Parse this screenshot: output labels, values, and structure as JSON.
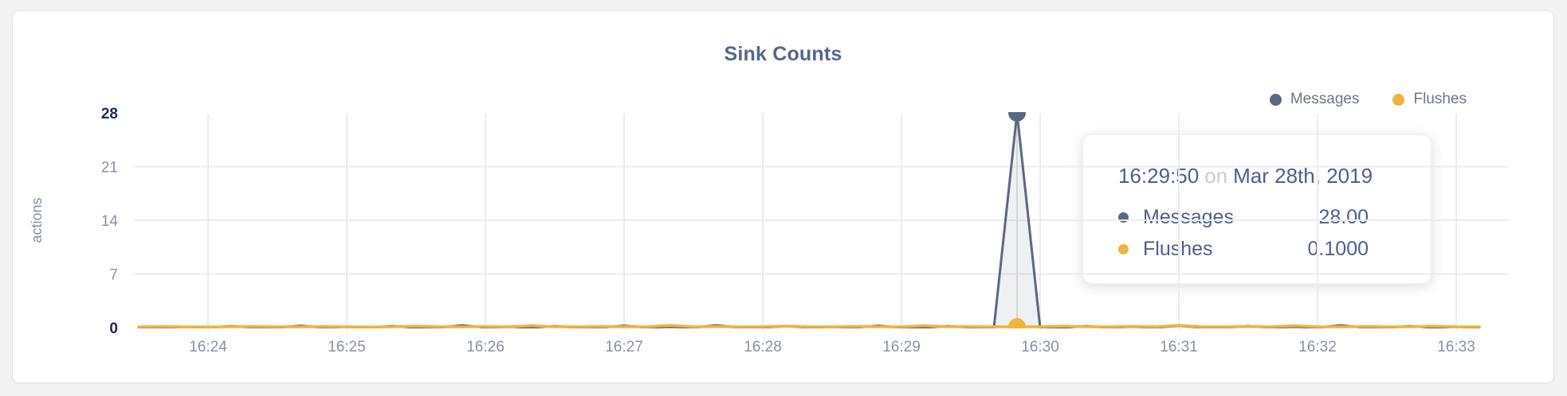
{
  "title": "Sink Counts",
  "legend": {
    "items": [
      {
        "label": "Messages",
        "color": "#5b6882"
      },
      {
        "label": "Flushes",
        "color": "#efb43a"
      }
    ]
  },
  "tooltip": {
    "time": "16:29:50",
    "preposition": "on",
    "date": "Mar 28th, 2019",
    "rows": [
      {
        "label": "Messages",
        "value": "28.00",
        "color": "#5b6882"
      },
      {
        "label": "Flushes",
        "value": "0.1000",
        "color": "#efb43a"
      }
    ]
  },
  "chart_data": {
    "type": "line",
    "title": "Sink Counts",
    "xlabel": "",
    "ylabel": "actions",
    "ylim": [
      0,
      28
    ],
    "grid": true,
    "legend_position": "top-right",
    "yticks": [
      {
        "v": 0,
        "highlight": true
      },
      {
        "v": 7,
        "highlight": false
      },
      {
        "v": 14,
        "highlight": false
      },
      {
        "v": 21,
        "highlight": false
      },
      {
        "v": 28,
        "highlight": true
      }
    ],
    "x_start": "16:23:30",
    "x_end": "16:33:10",
    "t_step_seconds": 10,
    "xticks": [
      {
        "label": "16:24",
        "t": 30
      },
      {
        "label": "16:25",
        "t": 90
      },
      {
        "label": "16:26",
        "t": 150
      },
      {
        "label": "16:27",
        "t": 210
      },
      {
        "label": "16:28",
        "t": 270
      },
      {
        "label": "16:29",
        "t": 330
      },
      {
        "label": "16:30",
        "t": 390
      },
      {
        "label": "16:31",
        "t": 450
      },
      {
        "label": "16:32",
        "t": 510
      },
      {
        "label": "16:33",
        "t": 570
      }
    ],
    "series": [
      {
        "name": "Messages",
        "color": "#5b6882",
        "fill": "rgba(91,104,130,0.10)",
        "values": [
          0,
          0,
          0.1,
          0,
          0.2,
          0,
          0,
          0.25,
          0,
          0.1,
          0,
          0.2,
          0,
          0,
          0.3,
          0,
          0.1,
          0,
          0.2,
          0,
          0,
          0.25,
          0,
          0.1,
          0,
          0.3,
          0,
          0,
          0.2,
          0,
          0.1,
          0,
          0.25,
          0,
          0,
          0.2,
          0,
          0,
          28,
          0,
          0,
          0.2,
          0,
          0.1,
          0,
          0.25,
          0,
          0,
          0.2,
          0,
          0.1,
          0,
          0.3,
          0,
          0,
          0.2,
          0,
          0.1,
          0
        ]
      },
      {
        "name": "Flushes",
        "color": "#efb43a",
        "fill": "none",
        "values": [
          0.1,
          0.12,
          0.1,
          0.08,
          0.1,
          0.15,
          0.1,
          0.1,
          0.12,
          0.1,
          0.08,
          0.1,
          0.2,
          0.1,
          0.1,
          0.12,
          0.1,
          0.25,
          0.1,
          0.1,
          0.15,
          0.1,
          0.1,
          0.3,
          0.1,
          0.12,
          0.1,
          0.1,
          0.2,
          0.1,
          0.1,
          0.15,
          0.1,
          0.1,
          0.25,
          0.1,
          0.12,
          0.1,
          0.1,
          0.1,
          0.2,
          0.1,
          0.1,
          0.15,
          0.1,
          0.3,
          0.1,
          0.1,
          0.12,
          0.1,
          0.25,
          0.1,
          0.1,
          0.15,
          0.1,
          0.1,
          0.2,
          0.1,
          0.1
        ]
      }
    ],
    "hover": {
      "t": 380,
      "time": "16:29:50",
      "date": "Mar 28th, 2019",
      "values": [
        {
          "series": "Messages",
          "value": 28.0
        },
        {
          "series": "Flushes",
          "value": 0.1
        }
      ]
    }
  }
}
